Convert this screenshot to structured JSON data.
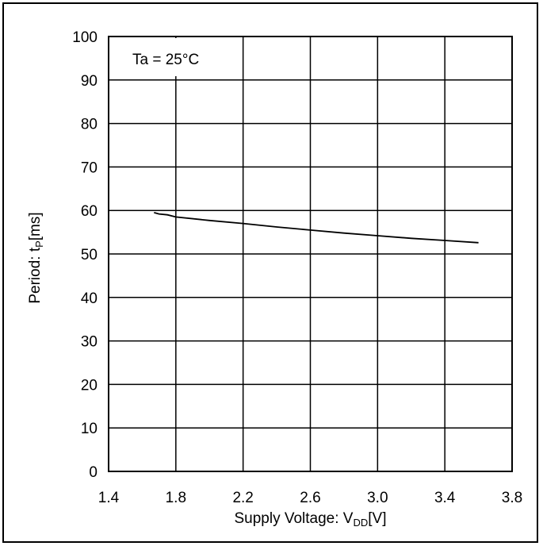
{
  "chart_data": {
    "type": "line",
    "annotation": "Ta = 25°C",
    "xlabel": {
      "main": "Supply Voltage: V",
      "sub": "DD",
      "tail": "[V]"
    },
    "ylabel": {
      "main": "Period: t",
      "sub": "P",
      "tail": "[ms]"
    },
    "xlim": [
      1.4,
      3.8
    ],
    "ylim": [
      0,
      100
    ],
    "xticks": [
      "1.4",
      "1.8",
      "2.2",
      "2.6",
      "3.0",
      "3.4",
      "3.8"
    ],
    "yticks": [
      "0",
      "10",
      "20",
      "30",
      "40",
      "50",
      "60",
      "70",
      "80",
      "90",
      "100"
    ],
    "grid": true,
    "series": [
      {
        "color": "#000000",
        "x": [
          1.67,
          1.7,
          1.75,
          1.8,
          2.0,
          2.2,
          2.4,
          2.6,
          2.8,
          3.0,
          3.2,
          3.4,
          3.6
        ],
        "y": [
          59.5,
          59.2,
          59.0,
          58.5,
          57.7,
          57.0,
          56.2,
          55.5,
          54.8,
          54.2,
          53.6,
          53.1,
          52.6
        ]
      }
    ]
  }
}
